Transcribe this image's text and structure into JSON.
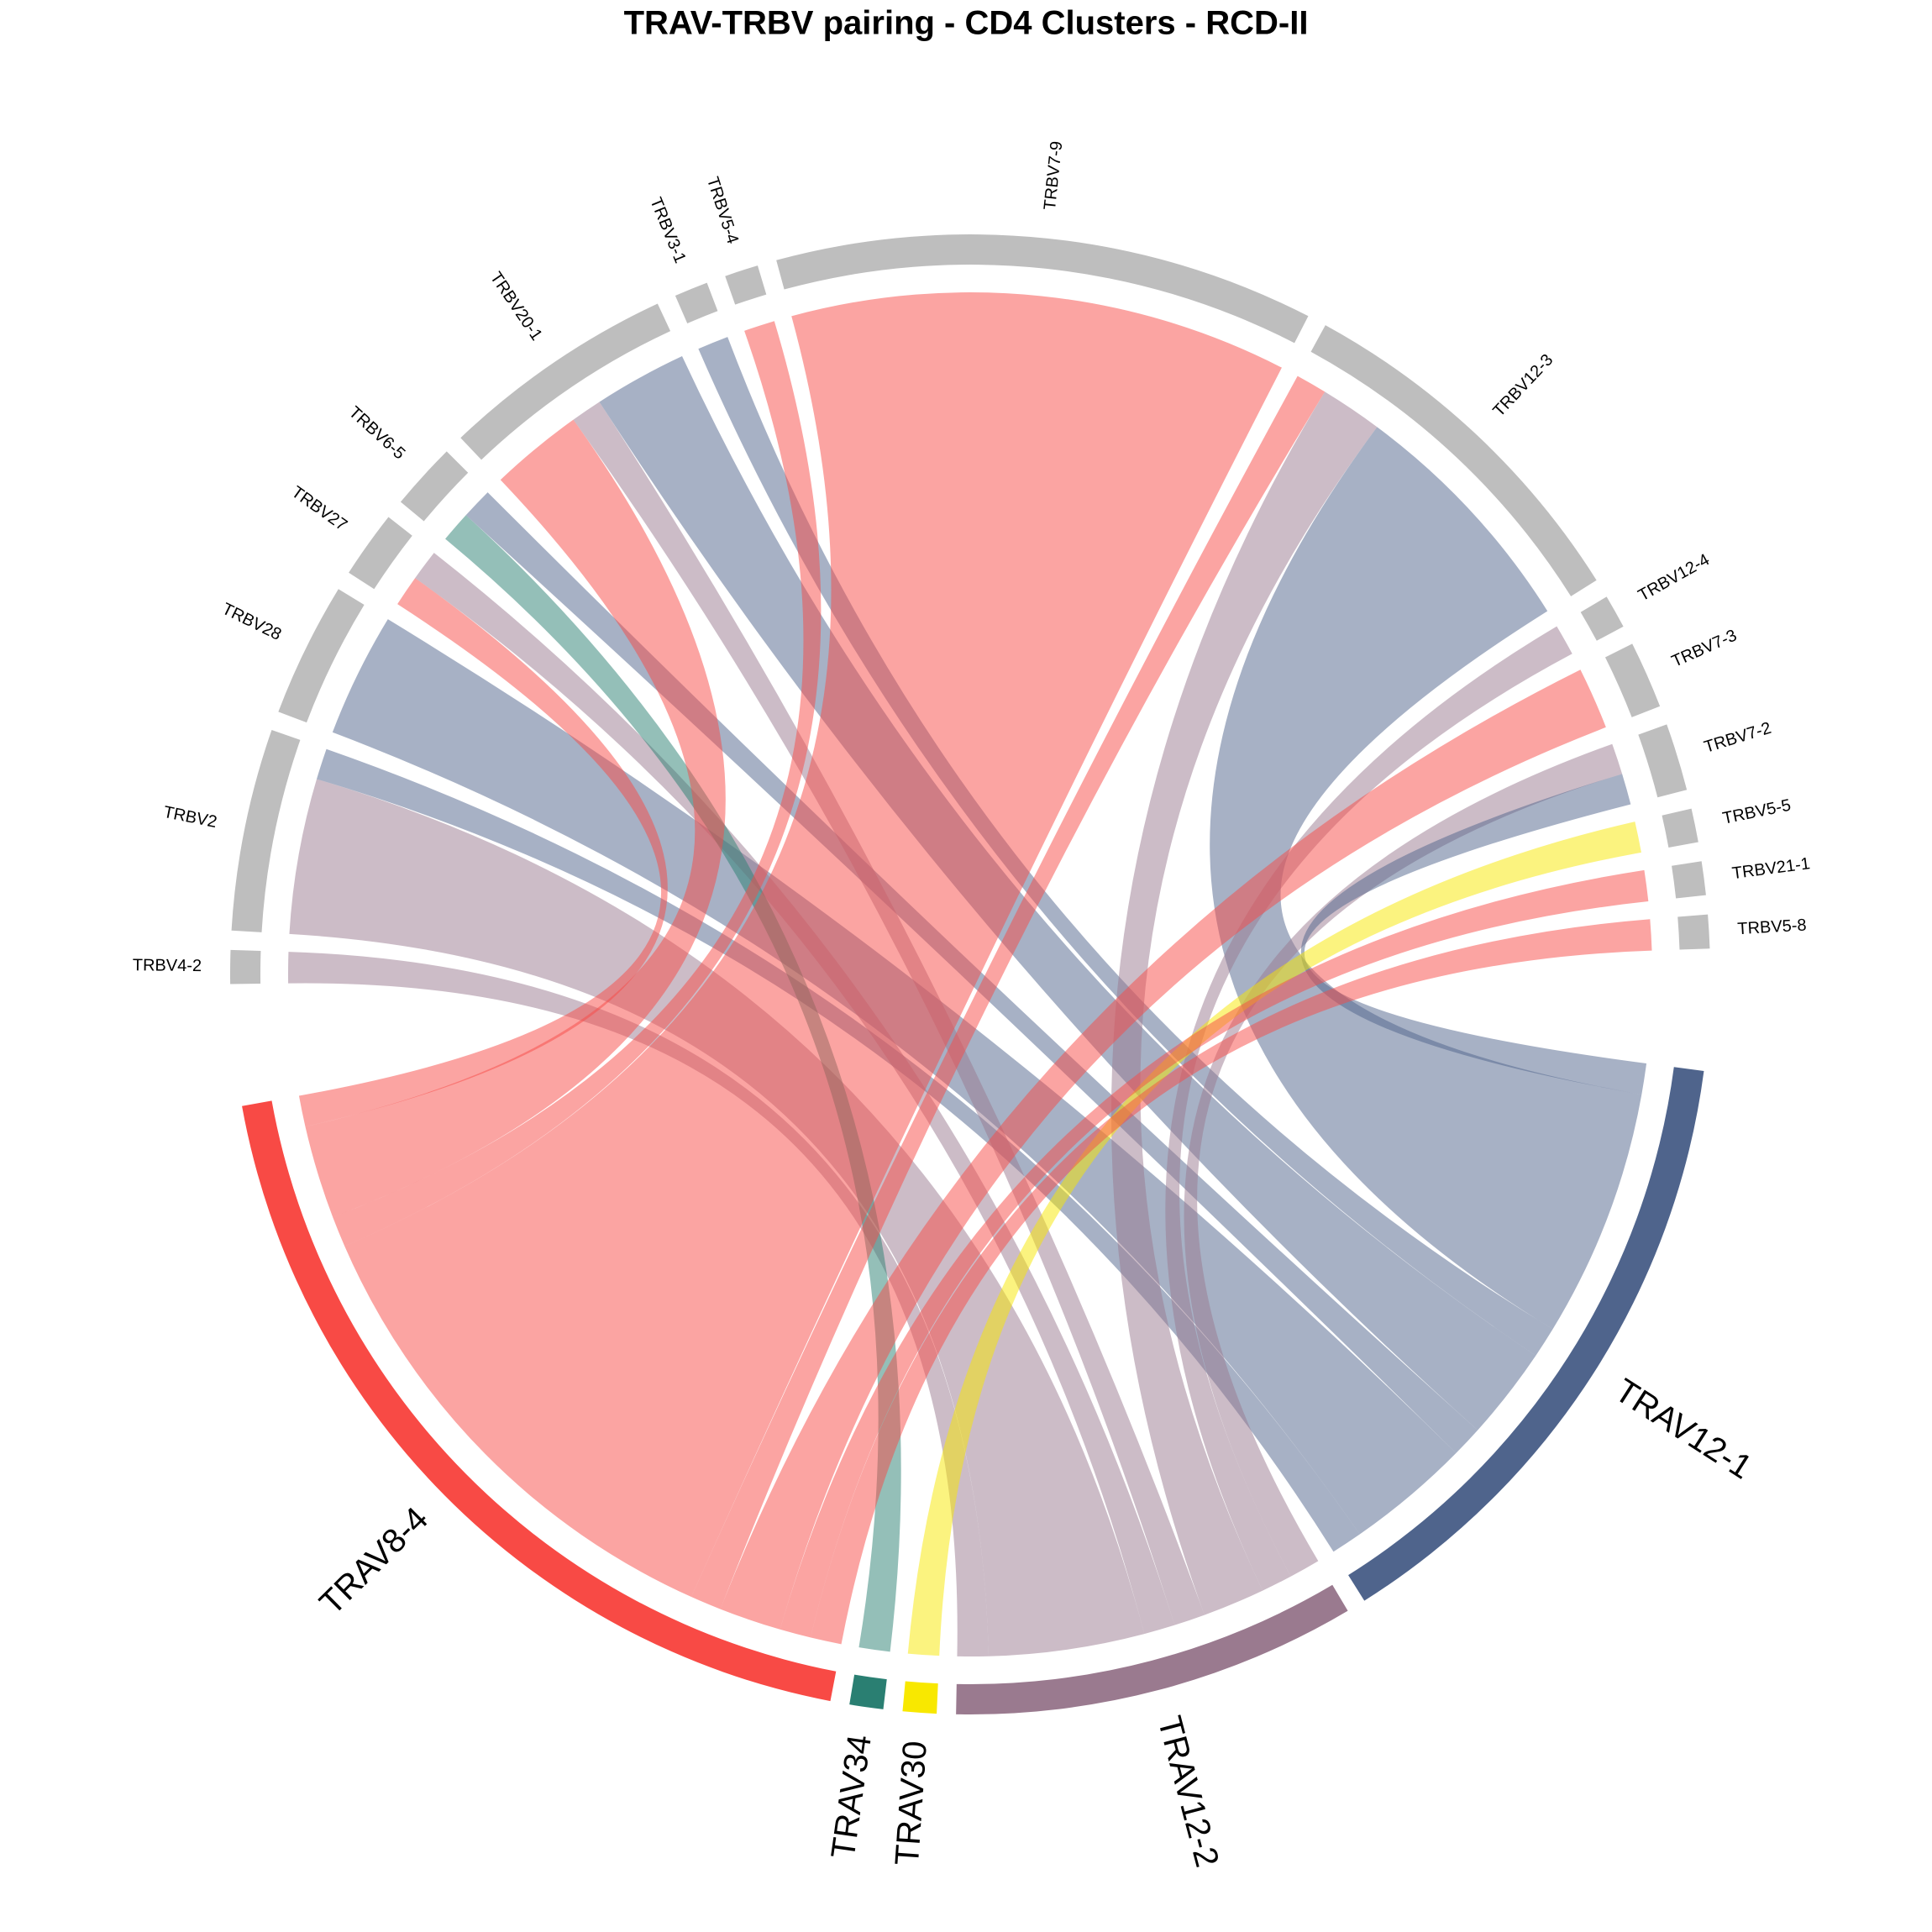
{
  "chart_data": {
    "type": "chord",
    "title": "TRAV-TRBV pairing - CD4 Clusters - RCD-II",
    "sectors": [
      {
        "name": "TRAV12-1",
        "color": "#4f648c"
      },
      {
        "name": "TRAV12-2",
        "color": "#9a7a8f"
      },
      {
        "name": "TRAV30",
        "color": "#f8e800"
      },
      {
        "name": "TRAV34",
        "color": "#2a7f72"
      },
      {
        "name": "TRAV8-4",
        "color": "#f84a45"
      },
      {
        "name": "TRBV4-2",
        "color": "#bebebe"
      },
      {
        "name": "TRBV2",
        "color": "#bebebe"
      },
      {
        "name": "TRBV28",
        "color": "#bebebe"
      },
      {
        "name": "TRBV27",
        "color": "#bebebe"
      },
      {
        "name": "TRBV6-5",
        "color": "#bebebe"
      },
      {
        "name": "TRBV20-1",
        "color": "#bebebe"
      },
      {
        "name": "TRBV3-1",
        "color": "#bebebe"
      },
      {
        "name": "TRBV5-4",
        "color": "#bebebe"
      },
      {
        "name": "TRBV7-9",
        "color": "#bebebe"
      },
      {
        "name": "TRBV12-3",
        "color": "#bebebe"
      },
      {
        "name": "TRBV12-4",
        "color": "#bebebe"
      },
      {
        "name": "TRBV7-3",
        "color": "#bebebe"
      },
      {
        "name": "TRBV7-2",
        "color": "#bebebe"
      },
      {
        "name": "TRBV5-5",
        "color": "#bebebe"
      },
      {
        "name": "TRBV21-1",
        "color": "#bebebe"
      },
      {
        "name": "TRBV5-8",
        "color": "#bebebe"
      }
    ],
    "links": [
      {
        "from": "TRAV12-2",
        "to": "TRBV4-2",
        "value": 1
      },
      {
        "from": "TRAV12-2",
        "to": "TRBV2",
        "value": 5
      },
      {
        "from": "TRAV12-1",
        "to": "TRBV2",
        "value": 1
      },
      {
        "from": "TRAV12-1",
        "to": "TRBV28",
        "value": 4
      },
      {
        "from": "TRAV8-4",
        "to": "TRBV27",
        "value": 1
      },
      {
        "from": "TRAV12-2",
        "to": "TRBV27",
        "value": 1
      },
      {
        "from": "TRAV34",
        "to": "TRBV6-5",
        "value": 1
      },
      {
        "from": "TRAV12-1",
        "to": "TRBV6-5",
        "value": 1
      },
      {
        "from": "TRAV8-4",
        "to": "TRBV20-1",
        "value": 3
      },
      {
        "from": "TRAV12-2",
        "to": "TRBV20-1",
        "value": 1
      },
      {
        "from": "TRAV12-1",
        "to": "TRBV20-1",
        "value": 3
      },
      {
        "from": "TRAV12-1",
        "to": "TRBV3-1",
        "value": 1
      },
      {
        "from": "TRAV8-4",
        "to": "TRBV5-4",
        "value": 1
      },
      {
        "from": "TRAV8-4",
        "to": "TRBV7-9",
        "value": 16
      },
      {
        "from": "TRAV8-4",
        "to": "TRBV12-3",
        "value": 1
      },
      {
        "from": "TRAV12-2",
        "to": "TRBV12-3",
        "value": 2
      },
      {
        "from": "TRAV12-1",
        "to": "TRBV12-3",
        "value": 8
      },
      {
        "from": "TRAV12-2",
        "to": "TRBV12-4",
        "value": 1
      },
      {
        "from": "TRAV8-4",
        "to": "TRBV7-3",
        "value": 2
      },
      {
        "from": "TRAV12-2",
        "to": "TRBV7-2",
        "value": 1
      },
      {
        "from": "TRAV12-1",
        "to": "TRBV7-2",
        "value": 1
      },
      {
        "from": "TRAV30",
        "to": "TRBV5-5",
        "value": 1
      },
      {
        "from": "TRAV8-4",
        "to": "TRBV21-1",
        "value": 1
      },
      {
        "from": "TRAV8-4",
        "to": "TRBV5-8",
        "value": 1
      }
    ]
  }
}
